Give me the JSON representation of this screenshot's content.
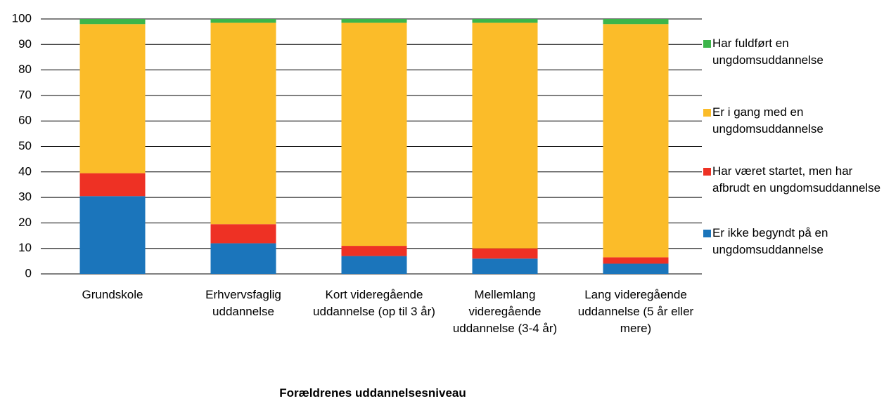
{
  "chart_data": {
    "type": "bar",
    "stacked": true,
    "x_label": "Forældrenes uddannelsesniveau",
    "categories": [
      "Grundskole",
      "Erhvervsfaglig uddannelse",
      "Kort videregående uddannelse (op til 3 år)",
      "Mellemlang videregående uddannelse (3-4 år)",
      "Lang videregående uddannelse (5 år eller mere)"
    ],
    "series": [
      {
        "name": "Er ikke begyndt på en ungdomsuddannelse",
        "color": "#1b75bb",
        "values": [
          30.5,
          12,
          7,
          6,
          4
        ]
      },
      {
        "name": "Har været startet, men har afbrudt en ungdomsuddannelse",
        "color": "#ee3124",
        "values": [
          9,
          7.5,
          4,
          4,
          2.5
        ]
      },
      {
        "name": "Er i gang med en ungdomsuddannelse",
        "color": "#fbbc29",
        "values": [
          58.5,
          79,
          87.5,
          88.5,
          91.5
        ]
      },
      {
        "name": "Har fuldført en ungdomsuddannelse",
        "color": "#3cb54a",
        "values": [
          2,
          1.5,
          1.5,
          1.5,
          2
        ]
      }
    ],
    "ylim": [
      0,
      100
    ],
    "yticks": [
      0,
      10,
      20,
      30,
      40,
      50,
      60,
      70,
      80,
      90,
      100
    ],
    "grid": true,
    "legend": "right"
  }
}
